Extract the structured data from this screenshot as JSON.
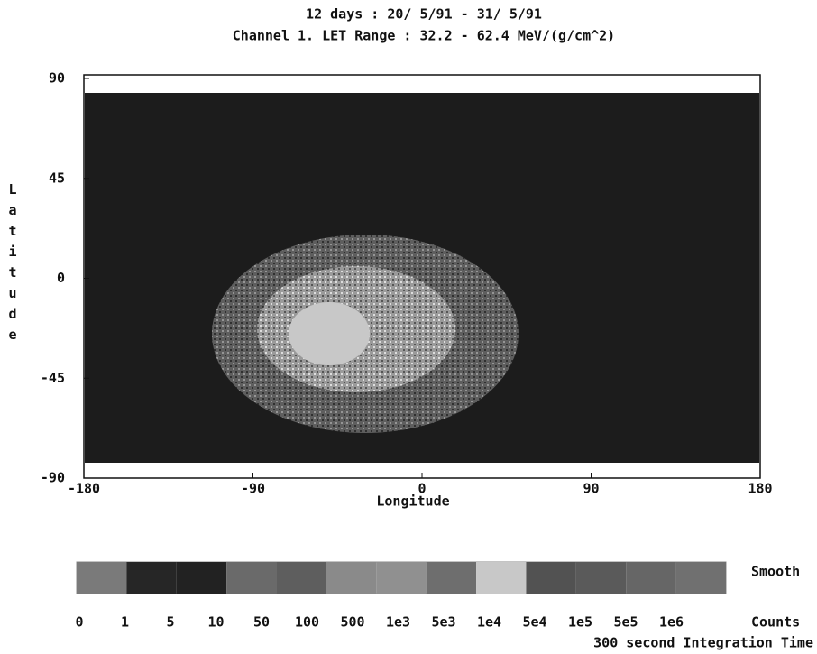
{
  "chart_data": {
    "type": "heatmap",
    "title": "12 days : 20/ 5/91 - 31/ 5/91",
    "subtitle": "Channel 1. LET Range : 32.2 - 62.4 MeV/(g/cm^2)",
    "x_label": "Longitude",
    "y_label": "Latitude",
    "xlim": [
      -180,
      180
    ],
    "ylim": [
      -90,
      90
    ],
    "xticks": [
      -180,
      -90,
      0,
      90,
      180
    ],
    "yticks": [
      -90,
      -45,
      0,
      45,
      90
    ],
    "colorbar": {
      "ticks": [
        0,
        1,
        5,
        10,
        50,
        100,
        500,
        {
          "value": 1000,
          "label": "1e3"
        },
        {
          "value": 5000,
          "label": "5e3"
        },
        {
          "value": 10000,
          "label": "1e4"
        },
        {
          "value": 50000,
          "label": "5e4"
        },
        {
          "value": 100000,
          "label": "1e5"
        },
        {
          "value": 500000,
          "label": "5e5"
        },
        {
          "value": 1000000,
          "label": "1e6"
        }
      ],
      "colors": [
        "#7a7a7a",
        "#262626",
        "#222222",
        "#6a6a6a",
        "#5e5e5e",
        "#8a8a8a",
        "#909090",
        "#6e6e6e",
        "#c8c8c8",
        "#525252",
        "#5a5a5a",
        "#666666",
        "#707070"
      ],
      "smooth_label": "Smooth",
      "unit_label": "Counts",
      "integration_label": "300 second Integration Time"
    }
  }
}
